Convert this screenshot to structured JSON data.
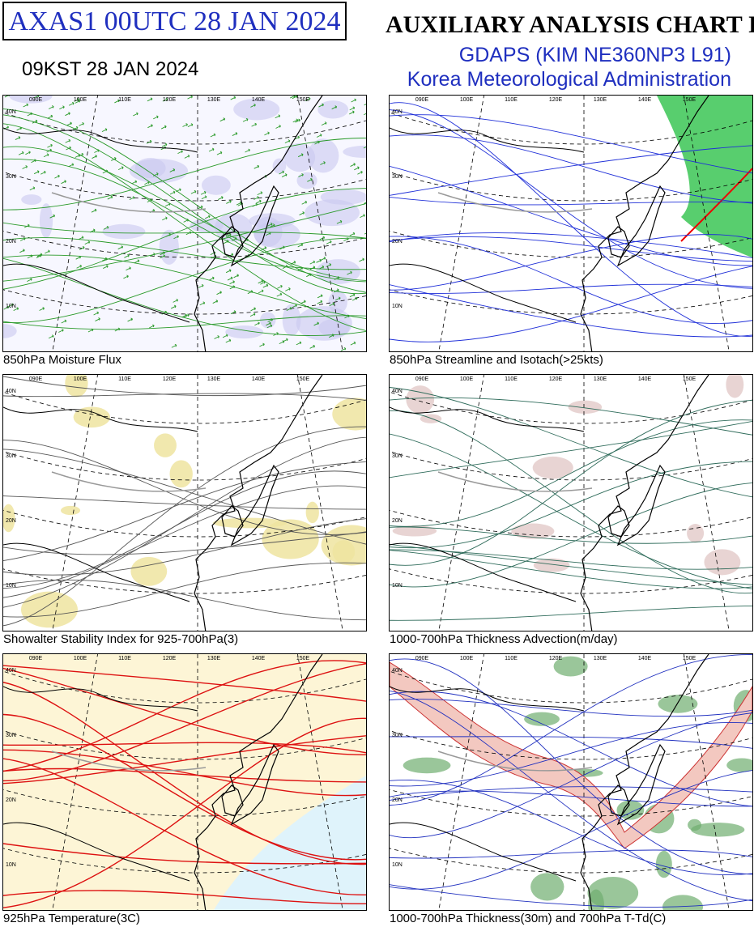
{
  "header": {
    "code": "AXAS1  00UTC 28 JAN 2024",
    "local_time": "09KST 28 JAN 2024",
    "title": "AUXILIARY ANALYSIS CHART  I",
    "model": "GDAPS (KIM NE360NP3 L91)",
    "agency": "Korea Meteorological Administration"
  },
  "panels": [
    {
      "caption": "850hPa Moisture Flux"
    },
    {
      "caption": "850hPa Streamline and Isotach(>25kts)"
    },
    {
      "caption": "Showalter Stability Index for 925-700hPa(3)"
    },
    {
      "caption": "1000-700hPa Thickness Advection(m/day)"
    },
    {
      "caption": "925hPa Temperature(3C)"
    },
    {
      "caption": "1000-700hPa Thickness(30m) and 700hPa T-Td(C)"
    }
  ],
  "map_labels": {
    "latitudes": [
      "40N",
      "30N",
      "20N",
      "10N"
    ],
    "longitudes": [
      "090E",
      "100E",
      "110E",
      "120E",
      "130E",
      "140E",
      "150E"
    ]
  }
}
